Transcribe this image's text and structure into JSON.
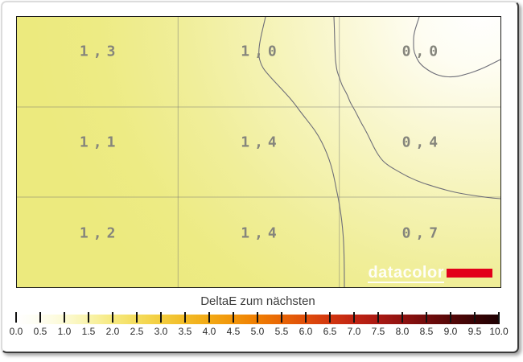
{
  "heatmap": {
    "rows": 3,
    "cols": 3,
    "cell_labels": [
      [
        "1,3",
        "1,0",
        "0,0"
      ],
      [
        "1,1",
        "1,4",
        "0,4"
      ],
      [
        "1,2",
        "1,4",
        "0,7"
      ]
    ]
  },
  "logo": {
    "text": "datacolor",
    "accent_color": "#e2001a"
  },
  "colorbar": {
    "title": "DeltaE zum nächsten",
    "ticks": [
      "0.0",
      "0.5",
      "1.0",
      "1.5",
      "2.0",
      "2.5",
      "3.0",
      "3.5",
      "4.0",
      "4.5",
      "5.0",
      "5.5",
      "6.0",
      "6.5",
      "7.0",
      "7.5",
      "8.0",
      "8.5",
      "9.0",
      "9.5",
      "10.0"
    ],
    "gradient_stops": [
      "#ffffff",
      "#fefdf0",
      "#fcfad4",
      "#f9f3ab",
      "#f6e97f",
      "#f4dc5c",
      "#f3cd3e",
      "#f2bb27",
      "#f2a915",
      "#f1940a",
      "#ef7d02",
      "#e86506",
      "#df4d0b",
      "#d23710",
      "#c02413",
      "#a91913",
      "#8f1210",
      "#720c0c",
      "#550808",
      "#390405",
      "#1e0203"
    ]
  },
  "chart_data": {
    "type": "heatmap",
    "title": "DeltaE zum nächsten",
    "grid_rows": 3,
    "grid_cols": 3,
    "values": [
      [
        1.3,
        1.0,
        0.0
      ],
      [
        1.1,
        1.4,
        0.4
      ],
      [
        1.2,
        1.4,
        0.7
      ]
    ],
    "value_format": "decimal-comma",
    "unit": "DeltaE",
    "colorbar_range": [
      0.0,
      10.0
    ],
    "colorbar_step": 0.5,
    "colorbar_low_color": "#ffffff",
    "colorbar_high_color": "#1e0203",
    "legend_position": "bottom"
  }
}
